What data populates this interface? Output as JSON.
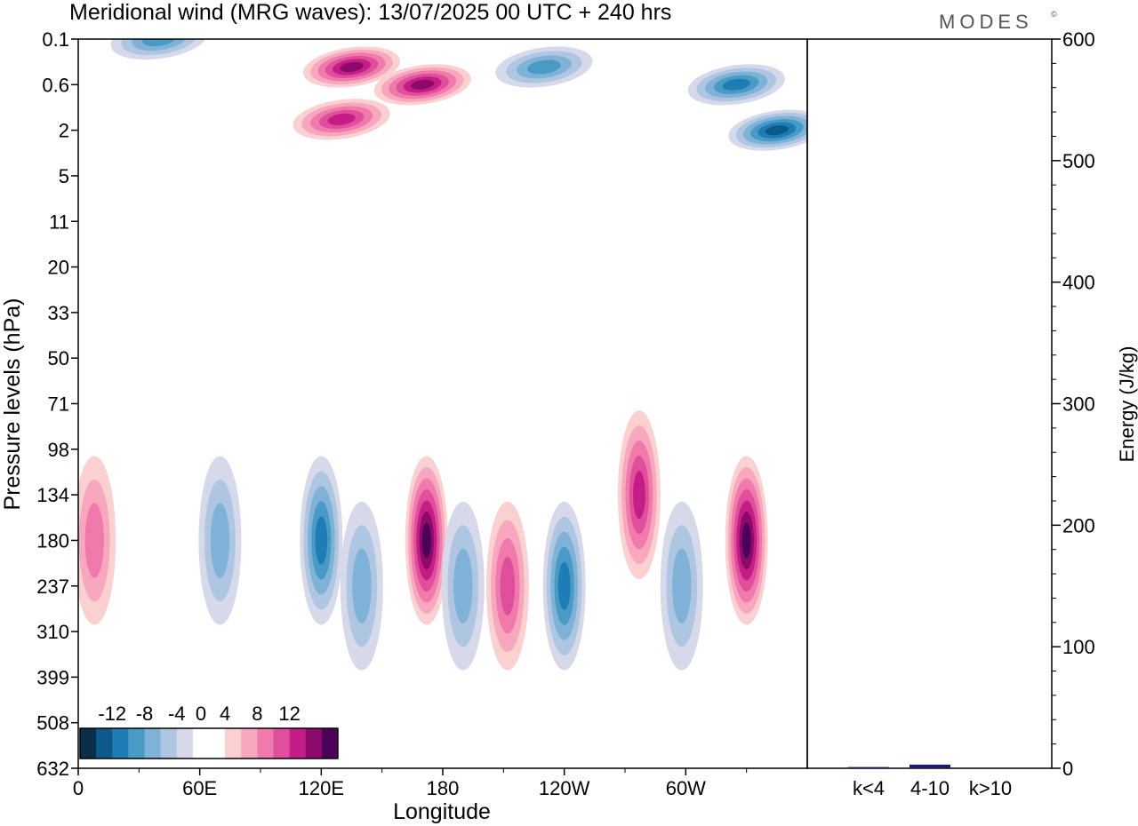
{
  "header": {
    "title": "Meridional wind (MRG waves):  13/07/2025  00 UTC  + 240 hrs",
    "brand": "MODES",
    "brand_mark": "©"
  },
  "chart_data": [
    {
      "type": "heatmap",
      "title": "Meridional wind (MRG waves):  13/07/2025  00 UTC  + 240 hrs",
      "xlabel": "Longitude",
      "ylabel": "Pressure levels (hPa)",
      "x_ticks": [
        "0",
        "60E",
        "120E",
        "180",
        "120W",
        "60W"
      ],
      "x_tick_values": [
        0,
        60,
        120,
        180,
        240,
        300
      ],
      "xlim": [
        0,
        360
      ],
      "y_ticks": [
        "0.1",
        "0.6",
        "2",
        "5",
        "11",
        "20",
        "33",
        "50",
        "71",
        "98",
        "134",
        "180",
        "237",
        "310",
        "399",
        "508",
        "632"
      ],
      "colorbar": {
        "labels": [
          "-12",
          "-8",
          "-4",
          "0",
          "4",
          "8",
          "12"
        ],
        "levels": [
          -14,
          -12,
          -10,
          -8,
          -6,
          -4,
          -2,
          0,
          2,
          4,
          6,
          8,
          10,
          12,
          14
        ],
        "colors": [
          "#0b2e4a",
          "#0d5a8a",
          "#1f7db5",
          "#4a9ac6",
          "#7fb2d6",
          "#aec6e2",
          "#d6d9ea",
          "#ffffff",
          "#ffffff",
          "#fbd0d1",
          "#f7a8bf",
          "#f07aab",
          "#e04f9c",
          "#c41d86",
          "#8c0a6b",
          "#4d0059"
        ]
      },
      "features": [
        {
          "lon": 135,
          "level": "0.3",
          "sign": "positive",
          "peak": 12
        },
        {
          "lon": 170,
          "level": "0.6",
          "sign": "positive",
          "peak": 12
        },
        {
          "lon": 130,
          "level": "1.5",
          "sign": "positive",
          "peak": 10
        },
        {
          "lon": 40,
          "level": "0.1",
          "sign": "negative",
          "peak": -8
        },
        {
          "lon": 230,
          "level": "0.3",
          "sign": "negative",
          "peak": -8
        },
        {
          "lon": 325,
          "level": "0.6",
          "sign": "negative",
          "peak": -10
        },
        {
          "lon": 345,
          "level": "2",
          "sign": "negative",
          "peak": -12
        },
        {
          "lon": 172,
          "level": "180",
          "sign": "positive",
          "peak": 14
        },
        {
          "lon": 330,
          "level": "180",
          "sign": "positive",
          "peak": 14
        },
        {
          "lon": 212,
          "level": "237",
          "sign": "positive",
          "peak": 8
        },
        {
          "lon": 8,
          "level": "180",
          "sign": "positive",
          "peak": 6
        },
        {
          "lon": 277,
          "level": "134",
          "sign": "positive",
          "peak": 10
        },
        {
          "lon": 120,
          "level": "180",
          "sign": "negative",
          "peak": -10
        },
        {
          "lon": 70,
          "level": "180",
          "sign": "negative",
          "peak": -6
        },
        {
          "lon": 240,
          "level": "237",
          "sign": "negative",
          "peak": -10
        },
        {
          "lon": 298,
          "level": "237",
          "sign": "negative",
          "peak": -6
        },
        {
          "lon": 190,
          "level": "237",
          "sign": "negative",
          "peak": -6
        },
        {
          "lon": 140,
          "level": "237",
          "sign": "negative",
          "peak": -6
        }
      ]
    },
    {
      "type": "bar",
      "categories": [
        "k<4",
        "4-10",
        "k>10"
      ],
      "values": [
        1,
        3,
        0
      ],
      "ylabel": "Energy (J/kg)",
      "ylim": [
        0,
        600
      ],
      "y_ticks": [
        "0",
        "100",
        "200",
        "300",
        "400",
        "500",
        "600"
      ],
      "bar_color": "#1a1a6e"
    }
  ]
}
